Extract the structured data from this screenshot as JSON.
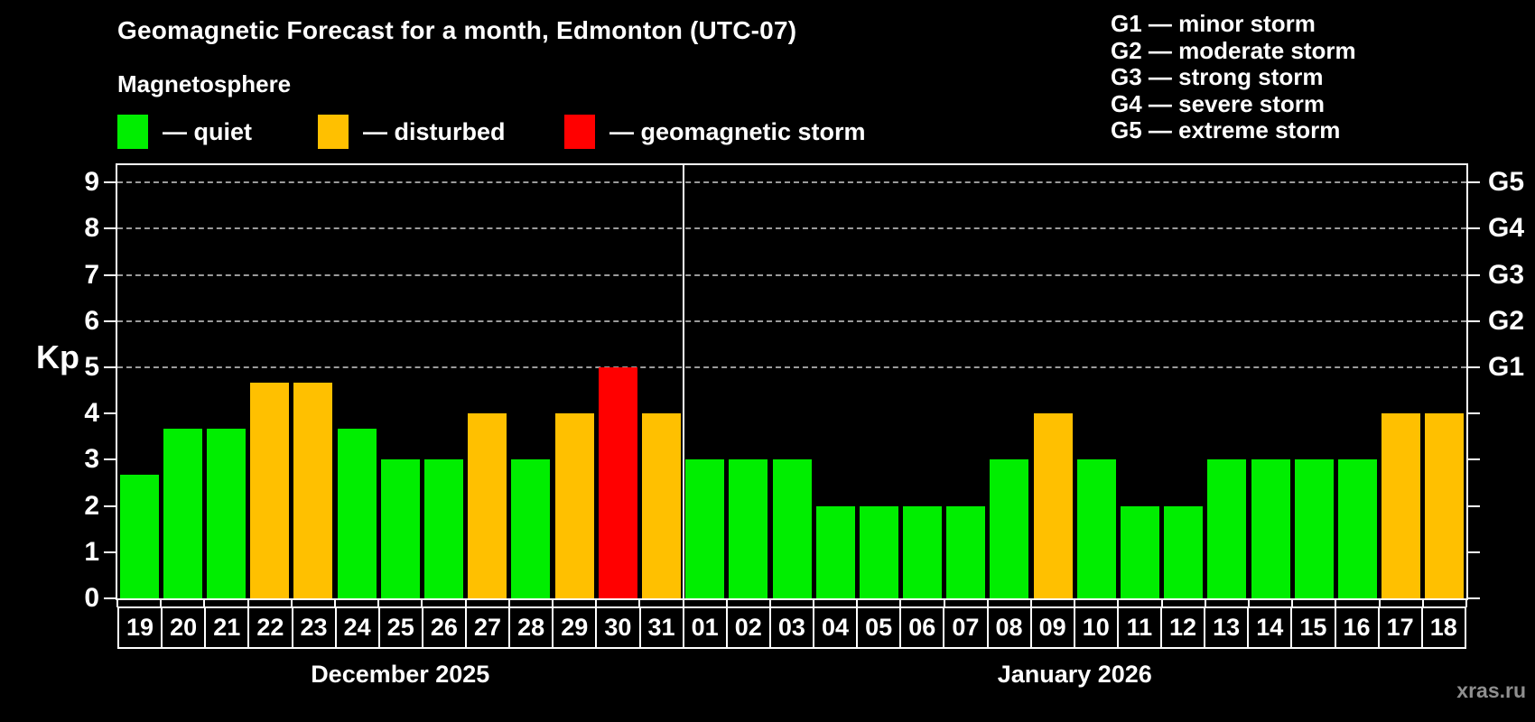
{
  "header": {
    "title": "Geomagnetic Forecast for a month, Edmonton (UTC-07)",
    "subtitle": "Magnetosphere"
  },
  "legend": {
    "items": [
      {
        "status": "quiet",
        "label": "— quiet"
      },
      {
        "status": "disturbed",
        "label": "— disturbed"
      },
      {
        "status": "storm",
        "label": "— geomagnetic storm"
      }
    ]
  },
  "g_legend": {
    "items": [
      {
        "text": "G1 — minor storm"
      },
      {
        "text": "G2 — moderate storm"
      },
      {
        "text": "G3 — strong storm"
      },
      {
        "text": "G4 — severe storm"
      },
      {
        "text": "G5 — extreme storm"
      }
    ]
  },
  "colors": {
    "quiet": "#00ee00",
    "disturbed": "#ffc000",
    "storm": "#ff0000",
    "grid": "#9b9b9b",
    "axis": "#ffffff",
    "watermark": "#8f8f8f"
  },
  "axis": {
    "kp_label": "Kp",
    "y_ticks": [
      0,
      1,
      2,
      3,
      4,
      5,
      6,
      7,
      8,
      9
    ],
    "g_ticks": [
      {
        "kp": 5,
        "label": "G1"
      },
      {
        "kp": 6,
        "label": "G2"
      },
      {
        "kp": 7,
        "label": "G3"
      },
      {
        "kp": 8,
        "label": "G4"
      },
      {
        "kp": 9,
        "label": "G5"
      }
    ]
  },
  "chart_data": {
    "type": "bar",
    "title": "Geomagnetic Forecast for a month, Edmonton (UTC-07)",
    "ylabel": "Kp",
    "ylim": [
      0,
      9.4
    ],
    "grid": "dashed horizontal at storm levels only",
    "gridlines_at": [
      5,
      6,
      7,
      8,
      9
    ],
    "sections": [
      {
        "label": "December 2025",
        "days": 13
      },
      {
        "label": "January 2026",
        "days": 18
      }
    ],
    "bars": [
      {
        "day": "19",
        "kp": 2.67,
        "status": "quiet"
      },
      {
        "day": "20",
        "kp": 3.67,
        "status": "quiet"
      },
      {
        "day": "21",
        "kp": 3.67,
        "status": "quiet"
      },
      {
        "day": "22",
        "kp": 4.67,
        "status": "disturbed"
      },
      {
        "day": "23",
        "kp": 4.67,
        "status": "disturbed"
      },
      {
        "day": "24",
        "kp": 3.67,
        "status": "quiet"
      },
      {
        "day": "25",
        "kp": 3,
        "status": "quiet"
      },
      {
        "day": "26",
        "kp": 3,
        "status": "quiet"
      },
      {
        "day": "27",
        "kp": 4,
        "status": "disturbed"
      },
      {
        "day": "28",
        "kp": 3,
        "status": "quiet"
      },
      {
        "day": "29",
        "kp": 4,
        "status": "disturbed"
      },
      {
        "day": "30",
        "kp": 5,
        "status": "storm"
      },
      {
        "day": "31",
        "kp": 4,
        "status": "disturbed"
      },
      {
        "day": "01",
        "kp": 3,
        "status": "quiet"
      },
      {
        "day": "02",
        "kp": 3,
        "status": "quiet"
      },
      {
        "day": "03",
        "kp": 3,
        "status": "quiet"
      },
      {
        "day": "04",
        "kp": 2,
        "status": "quiet"
      },
      {
        "day": "05",
        "kp": 2,
        "status": "quiet"
      },
      {
        "day": "06",
        "kp": 2,
        "status": "quiet"
      },
      {
        "day": "07",
        "kp": 2,
        "status": "quiet"
      },
      {
        "day": "08",
        "kp": 3,
        "status": "quiet"
      },
      {
        "day": "09",
        "kp": 4,
        "status": "disturbed"
      },
      {
        "day": "10",
        "kp": 3,
        "status": "quiet"
      },
      {
        "day": "11",
        "kp": 2,
        "status": "quiet"
      },
      {
        "day": "12",
        "kp": 2,
        "status": "quiet"
      },
      {
        "day": "13",
        "kp": 3,
        "status": "quiet"
      },
      {
        "day": "14",
        "kp": 3,
        "status": "quiet"
      },
      {
        "day": "15",
        "kp": 3,
        "status": "quiet"
      },
      {
        "day": "16",
        "kp": 3,
        "status": "quiet"
      },
      {
        "day": "17",
        "kp": 4,
        "status": "disturbed"
      },
      {
        "day": "18",
        "kp": 4,
        "status": "disturbed"
      }
    ]
  },
  "footer": {
    "watermark": "xras.ru"
  }
}
